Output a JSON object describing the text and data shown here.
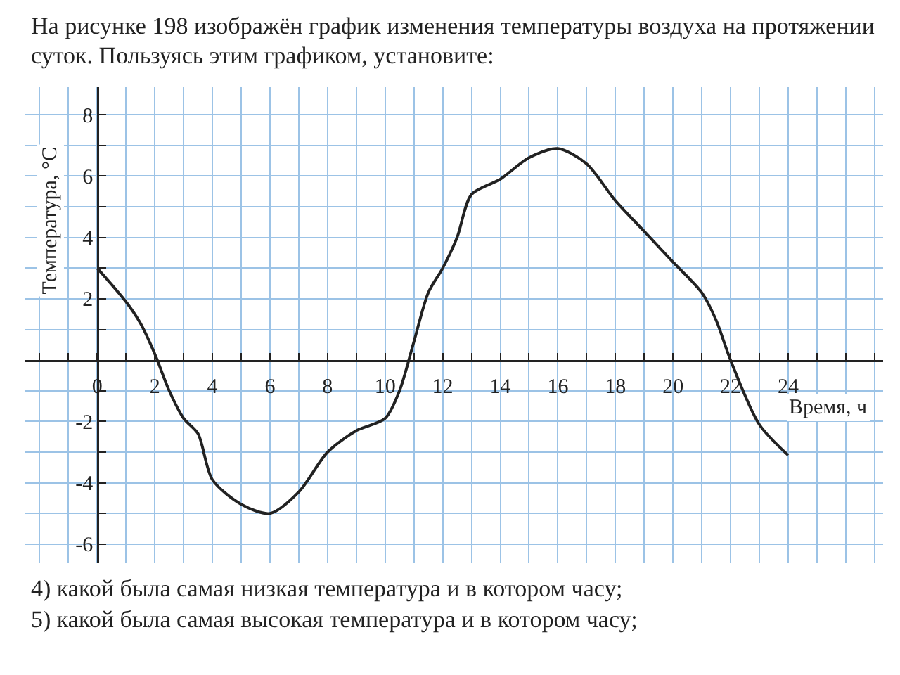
{
  "chart_data": {
    "type": "line",
    "title": "На рисунке 198 изображён график изменения температуры воздуха на протяжении суток. Пользуясь этим графиком, установите:",
    "xlabel": "Время, ч",
    "ylabel": "Температура, °C",
    "annotations": [
      "4) какой была самая низкая температура и в котором часу;",
      "5) какой была самая высокая температура и в котором часу;"
    ],
    "x": [
      0,
      1,
      1.5,
      2,
      2.5,
      3,
      3.5,
      4,
      5,
      6,
      7,
      8,
      9,
      10,
      10.5,
      11,
      11.5,
      12,
      12.5,
      13,
      14,
      15,
      16,
      17,
      18,
      19,
      20,
      21,
      21.5,
      22,
      23,
      24
    ],
    "series": [
      {
        "color": "#222222",
        "values": [
          3,
          1.9,
          1.2,
          0.2,
          -1,
          -1.9,
          -2.4,
          -3.9,
          -4.7,
          -5,
          -4.3,
          -3,
          -2.3,
          -1.9,
          -1,
          0.6,
          2.2,
          3,
          4,
          5.4,
          5.9,
          6.6,
          6.9,
          6.4,
          5.2,
          4.2,
          3.2,
          2.2,
          1.3,
          0,
          -2.1,
          -3.1
        ]
      }
    ],
    "xlim": [
      -2.5,
      27.3
    ],
    "ylim": [
      -6.6,
      8.9
    ],
    "xticks": [
      {
        "value": -2,
        "label": null
      },
      {
        "value": -1,
        "label": null
      },
      0,
      {
        "value": 1,
        "label": null
      },
      2,
      {
        "value": 3,
        "label": null
      },
      4,
      {
        "value": 5,
        "label": null
      },
      6,
      {
        "value": 7,
        "label": null
      },
      8,
      {
        "value": 9,
        "label": null
      },
      10,
      {
        "value": 11,
        "label": null
      },
      12,
      {
        "value": 13,
        "label": null
      },
      14,
      {
        "value": 15,
        "label": null
      },
      16,
      {
        "value": 17,
        "label": null
      },
      18,
      {
        "value": 19,
        "label": null
      },
      20,
      {
        "value": 21,
        "label": null
      },
      22,
      {
        "value": 23,
        "label": null
      },
      24,
      {
        "value": 25,
        "label": null
      },
      {
        "value": 26,
        "label": null
      },
      {
        "value": 27,
        "label": null
      }
    ],
    "yticks": [
      -6,
      {
        "value": -5,
        "label": null
      },
      -4,
      {
        "value": -3,
        "label": null
      },
      -2,
      {
        "value": -1,
        "label": null
      },
      {
        "value": 1,
        "label": null
      },
      2,
      {
        "value": 3,
        "label": null
      },
      4,
      {
        "value": 5,
        "label": null
      },
      6,
      {
        "value": 7,
        "label": null
      },
      8
    ],
    "grid": true,
    "marker": "none",
    "line_style": "solid"
  }
}
